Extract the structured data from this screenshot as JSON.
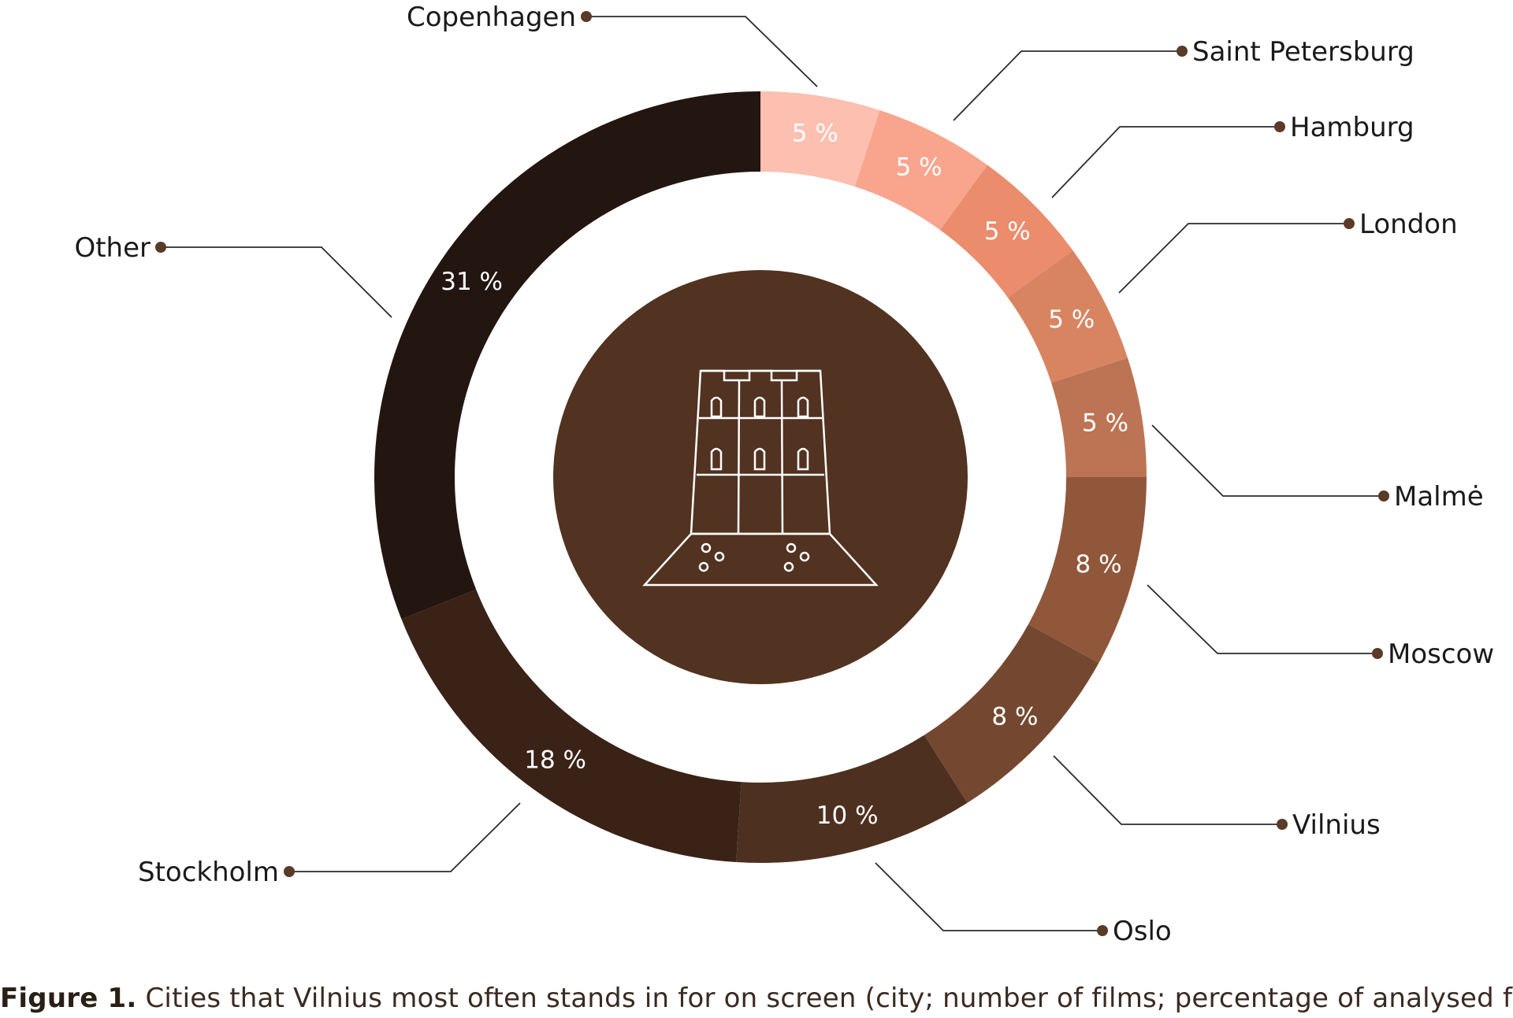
{
  "chart_data": {
    "type": "pie",
    "style": "donut",
    "slices": [
      {
        "label": "Copenhagen",
        "value": 5,
        "value_label": "5 %",
        "color": "#FCBFB0"
      },
      {
        "label": "Saint Petersburg",
        "value": 5,
        "value_label": "5 %",
        "color": "#F9A58E"
      },
      {
        "label": "Hamburg",
        "value": 5,
        "value_label": "5 %",
        "color": "#EB8C6C"
      },
      {
        "label": "London",
        "value": 5,
        "value_label": "5 %",
        "color": "#D98461"
      },
      {
        "label": "Malmė",
        "value": 5,
        "value_label": "5 %",
        "color": "#BD7454"
      },
      {
        "label": "Moscow",
        "value": 8,
        "value_label": "8 %",
        "color": "#91573A"
      },
      {
        "label": "Vilnius",
        "value": 8,
        "value_label": "8 %",
        "color": "#744830"
      },
      {
        "label": "Oslo",
        "value": 10,
        "value_label": "10 %",
        "color": "#4E3020"
      },
      {
        "label": "Stockholm",
        "value": 18,
        "value_label": "18 %",
        "color": "#3A2216"
      },
      {
        "label": "Other",
        "value": 31,
        "value_label": "31 %",
        "color": "#231610"
      }
    ],
    "center_icon": "castle-tower-icon",
    "center_color": "#523220",
    "leader_color": "#2b2b2b",
    "dot_color": "#5a3a28"
  },
  "caption": {
    "figure_label": "Figure 1.",
    "text": " Cities that Vilnius most often stands in for on screen (city; number of films; percentage of analysed films)"
  }
}
